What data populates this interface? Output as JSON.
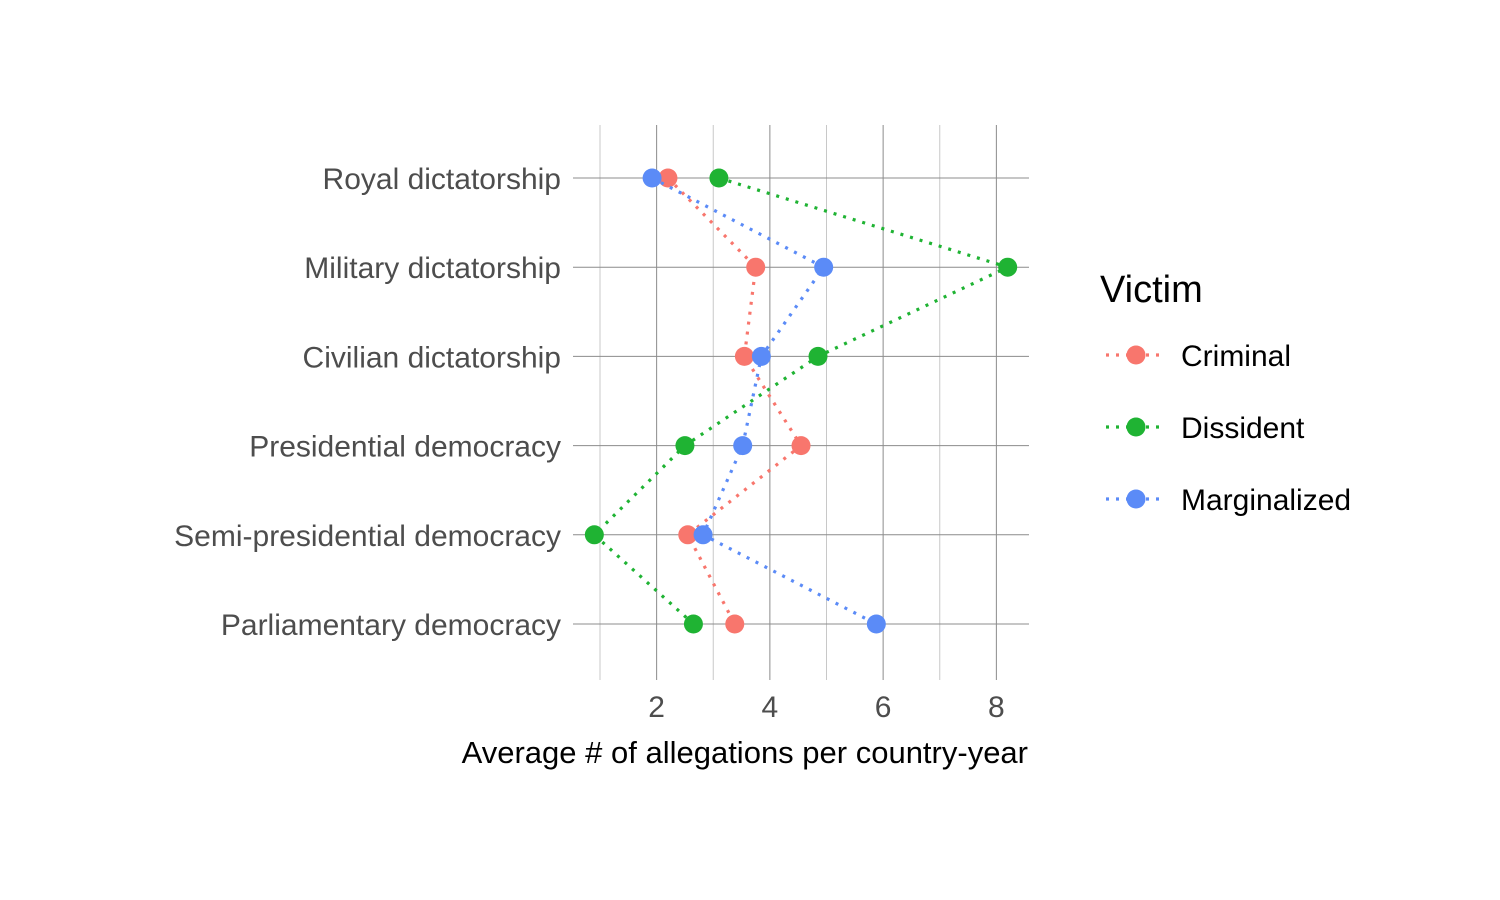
{
  "chart_data": {
    "type": "scatter",
    "orientation": "horizontal",
    "title": "",
    "xlabel": "Average # of allegations per country-year",
    "ylabel": "",
    "xlim": [
      0.7,
      8.6
    ],
    "xticks": [
      2,
      4,
      6,
      8
    ],
    "grid": true,
    "categories": [
      "Royal dictatorship",
      "Military dictatorship",
      "Civilian dictatorship",
      "Presidential democracy",
      "Semi-presidential democracy",
      "Parliamentary democracy"
    ],
    "legend": {
      "title": "Victim",
      "position": "right"
    },
    "series": [
      {
        "name": "Criminal",
        "color": "#F8766D",
        "line_style": "dotted",
        "values": [
          2.2,
          3.75,
          3.55,
          4.55,
          2.55,
          3.38
        ]
      },
      {
        "name": "Dissident",
        "color": "#1FB333",
        "line_style": "dotted",
        "values": [
          3.1,
          8.2,
          4.85,
          2.5,
          0.9,
          2.65
        ]
      },
      {
        "name": "Marginalized",
        "color": "#5B8BF7",
        "line_style": "dotted",
        "values": [
          1.92,
          4.95,
          3.85,
          3.52,
          2.82,
          5.88
        ]
      }
    ]
  }
}
